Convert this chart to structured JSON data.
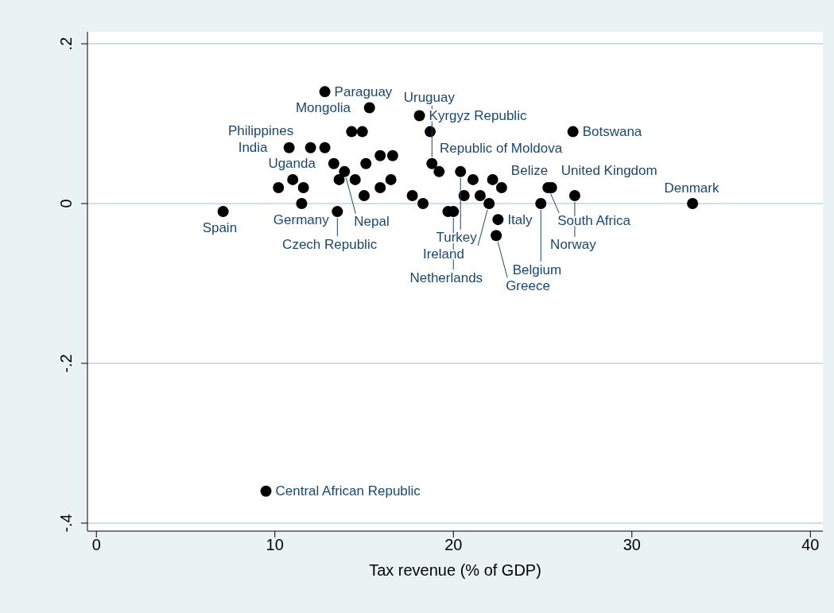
{
  "chart_data": {
    "type": "scatter",
    "xlabel": "Tax revenue (% of GDP)",
    "x": [
      12.8,
      15.3,
      18.1,
      14.3,
      14.9,
      18.7,
      26.7,
      10.8,
      12.0,
      12.8,
      13.3,
      15.1,
      15.9,
      16.6,
      13.9,
      18.8,
      20.4,
      19.2,
      11.0,
      13.6,
      14.5,
      16.5,
      21.1,
      22.2,
      10.2,
      11.6,
      15.9,
      22.7,
      25.3,
      25.5,
      26.8,
      15.0,
      17.7,
      20.6,
      21.5,
      11.5,
      18.3,
      22.0,
      24.9,
      33.4,
      7.1,
      13.5,
      19.7,
      20.0,
      22.5,
      22.4,
      9.5
    ],
    "values": [
      0.14,
      0.12,
      0.11,
      0.09,
      0.09,
      0.09,
      0.09,
      0.07,
      0.07,
      0.07,
      0.05,
      0.05,
      0.06,
      0.06,
      0.04,
      0.05,
      0.04,
      0.04,
      0.03,
      0.03,
      0.03,
      0.03,
      0.03,
      0.03,
      0.02,
      0.02,
      0.02,
      0.02,
      0.02,
      0.02,
      0.01,
      0.01,
      0.01,
      0.01,
      0.01,
      0,
      0,
      0,
      0,
      0,
      -0.01,
      -0.01,
      -0.01,
      -0.01,
      -0.02,
      -0.04,
      -0.36
    ],
    "color": "#000000",
    "marker": "circle",
    "xlim": [
      -0.5,
      40.7
    ],
    "ylim": [
      -0.41,
      0.215
    ],
    "xticks": [
      0,
      10,
      20,
      30,
      40
    ],
    "yticks": [
      {
        "value": 0.2,
        "label": ".2"
      },
      {
        "value": 0,
        "label": "0"
      },
      {
        "value": -0.2,
        "label": "-.2"
      },
      {
        "value": -0.4,
        "label": "-.4"
      }
    ],
    "grid": "y",
    "annotations": [
      {
        "text": "Paraguay",
        "x": 12.8,
        "y": 0.14
      },
      {
        "text": "Mongolia",
        "x": 15.3,
        "y": 0.12
      },
      {
        "text": "Kyrgyz Republic",
        "x": 18.1,
        "y": 0.11
      },
      {
        "text": "Republic of Moldova",
        "x": 18.7,
        "y": 0.09
      },
      {
        "text": "Botswana",
        "x": 26.7,
        "y": 0.09
      },
      {
        "text": "India",
        "x": 10.8,
        "y": 0.07
      },
      {
        "text": "Philippines",
        "x": 12.8,
        "y": 0.07
      },
      {
        "text": "Uruguay",
        "x": 18.8,
        "y": 0.05
      },
      {
        "text": "Turkey",
        "x": 20.4,
        "y": 0.04
      },
      {
        "text": "Nepal",
        "x": 13.9,
        "y": 0.04
      },
      {
        "text": "Uganda",
        "x": 11.0,
        "y": 0.03
      },
      {
        "text": "Belize",
        "x": 22.7,
        "y": 0.02
      },
      {
        "text": "South Africa",
        "x": 25.3,
        "y": 0.02
      },
      {
        "text": "United Kingdom",
        "x": 25.5,
        "y": 0.02
      },
      {
        "text": "Norway",
        "x": 26.8,
        "y": 0.01
      },
      {
        "text": "Germany",
        "x": 11.5,
        "y": 0
      },
      {
        "text": "Ireland",
        "x": 22.0,
        "y": 0
      },
      {
        "text": "Belgium",
        "x": 24.9,
        "y": 0
      },
      {
        "text": "Denmark",
        "x": 33.4,
        "y": 0
      },
      {
        "text": "Spain",
        "x": 7.1,
        "y": -0.01
      },
      {
        "text": "Czech Republic",
        "x": 13.5,
        "y": -0.01
      },
      {
        "text": "Netherlands",
        "x": 20.0,
        "y": -0.01
      },
      {
        "text": "Italy",
        "x": 22.5,
        "y": -0.02
      },
      {
        "text": "Greece",
        "x": 22.4,
        "y": -0.04
      },
      {
        "text": "Central African Republic",
        "x": 9.5,
        "y": -0.36
      }
    ]
  }
}
